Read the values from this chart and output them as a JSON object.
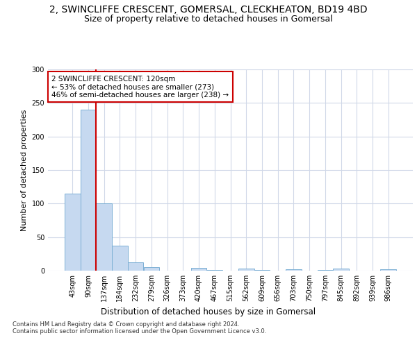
{
  "title1": "2, SWINCLIFFE CRESCENT, GOMERSAL, CLECKHEATON, BD19 4BD",
  "title2": "Size of property relative to detached houses in Gomersal",
  "xlabel": "Distribution of detached houses by size in Gomersal",
  "ylabel": "Number of detached properties",
  "footer": "Contains HM Land Registry data © Crown copyright and database right 2024.\nContains public sector information licensed under the Open Government Licence v3.0.",
  "categories": [
    "43sqm",
    "90sqm",
    "137sqm",
    "184sqm",
    "232sqm",
    "279sqm",
    "326sqm",
    "373sqm",
    "420sqm",
    "467sqm",
    "515sqm",
    "562sqm",
    "609sqm",
    "656sqm",
    "703sqm",
    "750sqm",
    "797sqm",
    "845sqm",
    "892sqm",
    "939sqm",
    "986sqm"
  ],
  "values": [
    115,
    240,
    100,
    37,
    12,
    5,
    0,
    0,
    4,
    1,
    0,
    3,
    1,
    0,
    2,
    0,
    1,
    3,
    0,
    0,
    2
  ],
  "bar_color": "#c6d9f0",
  "bar_edge_color": "#7bafd4",
  "red_line_x": 1.5,
  "annotation_text": "2 SWINCLIFFE CRESCENT: 120sqm\n← 53% of detached houses are smaller (273)\n46% of semi-detached houses are larger (238) →",
  "annotation_box_color": "#ffffff",
  "annotation_box_edge": "#cc0000",
  "red_line_color": "#cc0000",
  "ylim": [
    0,
    300
  ],
  "yticks": [
    0,
    50,
    100,
    150,
    200,
    250,
    300
  ],
  "background_color": "#ffffff",
  "grid_color": "#d0d8e8",
  "title1_fontsize": 10,
  "title2_fontsize": 9,
  "xlabel_fontsize": 8.5,
  "ylabel_fontsize": 8,
  "tick_fontsize": 7,
  "annotation_fontsize": 7.5,
  "footer_fontsize": 6
}
